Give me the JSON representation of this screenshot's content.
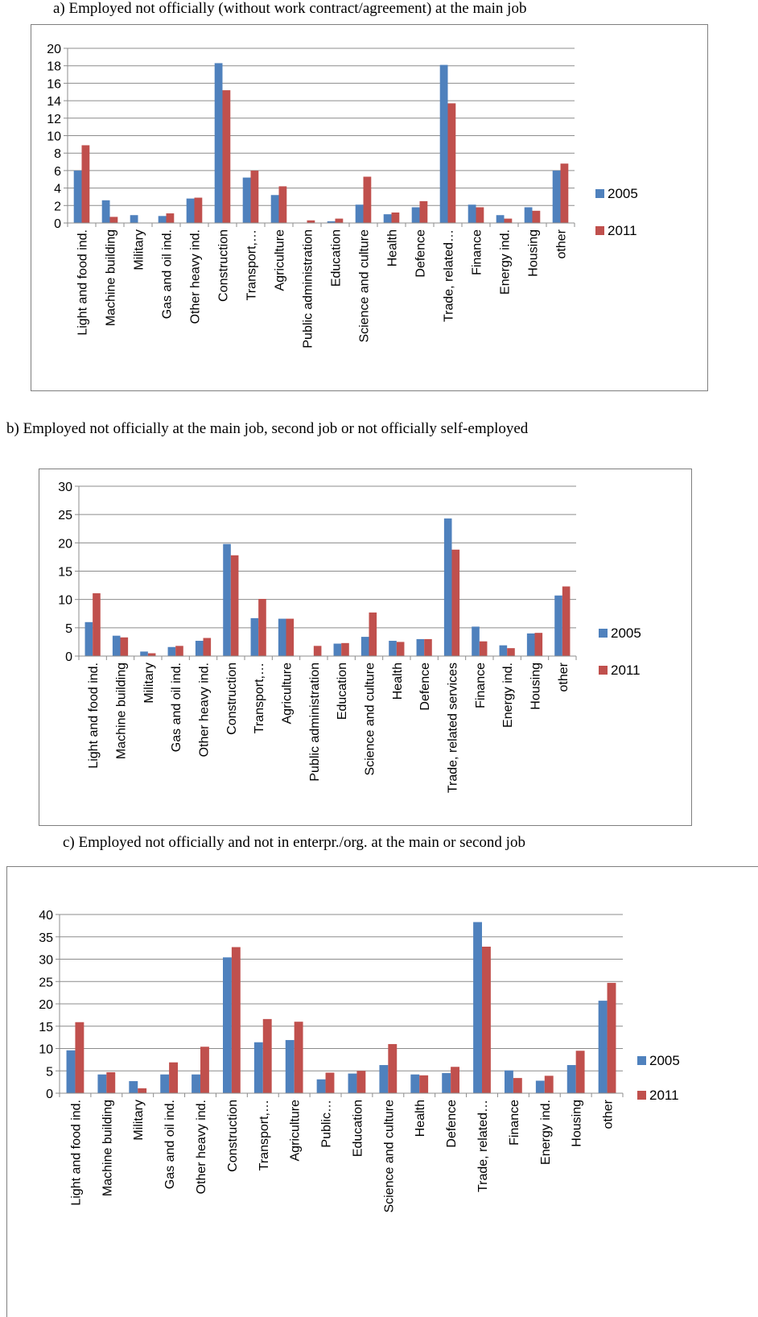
{
  "colors": {
    "s2005": "#4f81bd",
    "s2011": "#c0504d",
    "grid": "#8c8c8c",
    "frame": "#7f7f7f"
  },
  "chart_data": [
    {
      "type": "bar",
      "title": "a)    Employed not officially (without work contract/agreement) at the main job",
      "categories": [
        "Light and food ind.",
        "Machine building",
        "Military",
        "Gas and oil ind.",
        "Other heavy ind.",
        "Construction",
        "Transport,…",
        "Agriculture",
        "Public administration",
        "Education",
        "Science and culture",
        "Health",
        "Defence",
        "Trade, related…",
        "Finance",
        "Energy ind.",
        "Housing",
        "other"
      ],
      "series": [
        {
          "name": "2005",
          "values": [
            6.0,
            2.6,
            0.9,
            0.8,
            2.8,
            18.3,
            5.2,
            3.2,
            0.0,
            0.2,
            2.1,
            1.0,
            1.8,
            18.1,
            2.1,
            0.9,
            1.8,
            6.0
          ]
        },
        {
          "name": "2011",
          "values": [
            8.9,
            0.7,
            0.0,
            1.1,
            2.9,
            15.2,
            6.0,
            4.2,
            0.3,
            0.5,
            5.3,
            1.2,
            2.5,
            13.7,
            1.8,
            0.5,
            1.4,
            6.8
          ]
        }
      ],
      "ylim": [
        0,
        20
      ],
      "yticks": [
        0,
        2,
        4,
        6,
        8,
        10,
        12,
        14,
        16,
        18,
        20
      ],
      "grid": true,
      "legend": "right"
    },
    {
      "type": "bar",
      "title": "b)    Employed not officially at the main job, second job or not officially self-employed",
      "categories": [
        "Light and food ind.",
        "Machine building",
        "Military",
        "Gas and oil ind.",
        "Other heavy ind.",
        "Construction",
        "Transport,…",
        "Agriculture",
        "Public administration",
        "Education",
        "Science and culture",
        "Health",
        "Defence",
        "Trade, related services",
        "Finance",
        "Energy ind.",
        "Housing",
        "other"
      ],
      "series": [
        {
          "name": "2005",
          "values": [
            6.0,
            3.6,
            0.8,
            1.6,
            2.7,
            19.8,
            6.7,
            6.6,
            0.0,
            2.2,
            3.4,
            2.7,
            3.0,
            24.3,
            5.2,
            1.9,
            4.0,
            10.7
          ]
        },
        {
          "name": "2011",
          "values": [
            11.1,
            3.3,
            0.5,
            1.8,
            3.2,
            17.8,
            10.1,
            6.6,
            1.8,
            2.3,
            7.7,
            2.5,
            3.0,
            18.8,
            2.6,
            1.4,
            4.1,
            12.3
          ]
        }
      ],
      "ylim": [
        0,
        30
      ],
      "yticks": [
        0,
        5,
        10,
        15,
        20,
        25,
        30
      ],
      "grid": true,
      "legend": "right"
    },
    {
      "type": "bar",
      "title": "c)    Employed not officially and not in enterpr./org. at the main or second job",
      "categories": [
        "Light and food ind.",
        "Machine building",
        "Military",
        "Gas and oil ind.",
        "Other heavy ind.",
        "Construction",
        "Transport,…",
        "Agriculture",
        "Public…",
        "Education",
        "Science and culture",
        "Health",
        "Defence",
        "Trade, related…",
        "Finance",
        "Energy ind.",
        "Housing",
        "other"
      ],
      "series": [
        {
          "name": "2005",
          "values": [
            9.6,
            4.2,
            2.7,
            4.2,
            4.2,
            30.4,
            11.4,
            11.9,
            3.1,
            4.4,
            6.3,
            4.2,
            4.5,
            38.3,
            5.1,
            2.8,
            6.3,
            20.7
          ]
        },
        {
          "name": "2011",
          "values": [
            15.9,
            4.7,
            1.1,
            6.9,
            10.4,
            32.7,
            16.6,
            16.0,
            4.6,
            5.0,
            11.0,
            4.0,
            5.9,
            32.8,
            3.4,
            3.9,
            9.5,
            24.7
          ]
        }
      ],
      "ylim": [
        0,
        40
      ],
      "yticks": [
        0,
        5,
        10,
        15,
        20,
        25,
        30,
        35,
        40
      ],
      "grid": true,
      "legend": "right"
    }
  ]
}
